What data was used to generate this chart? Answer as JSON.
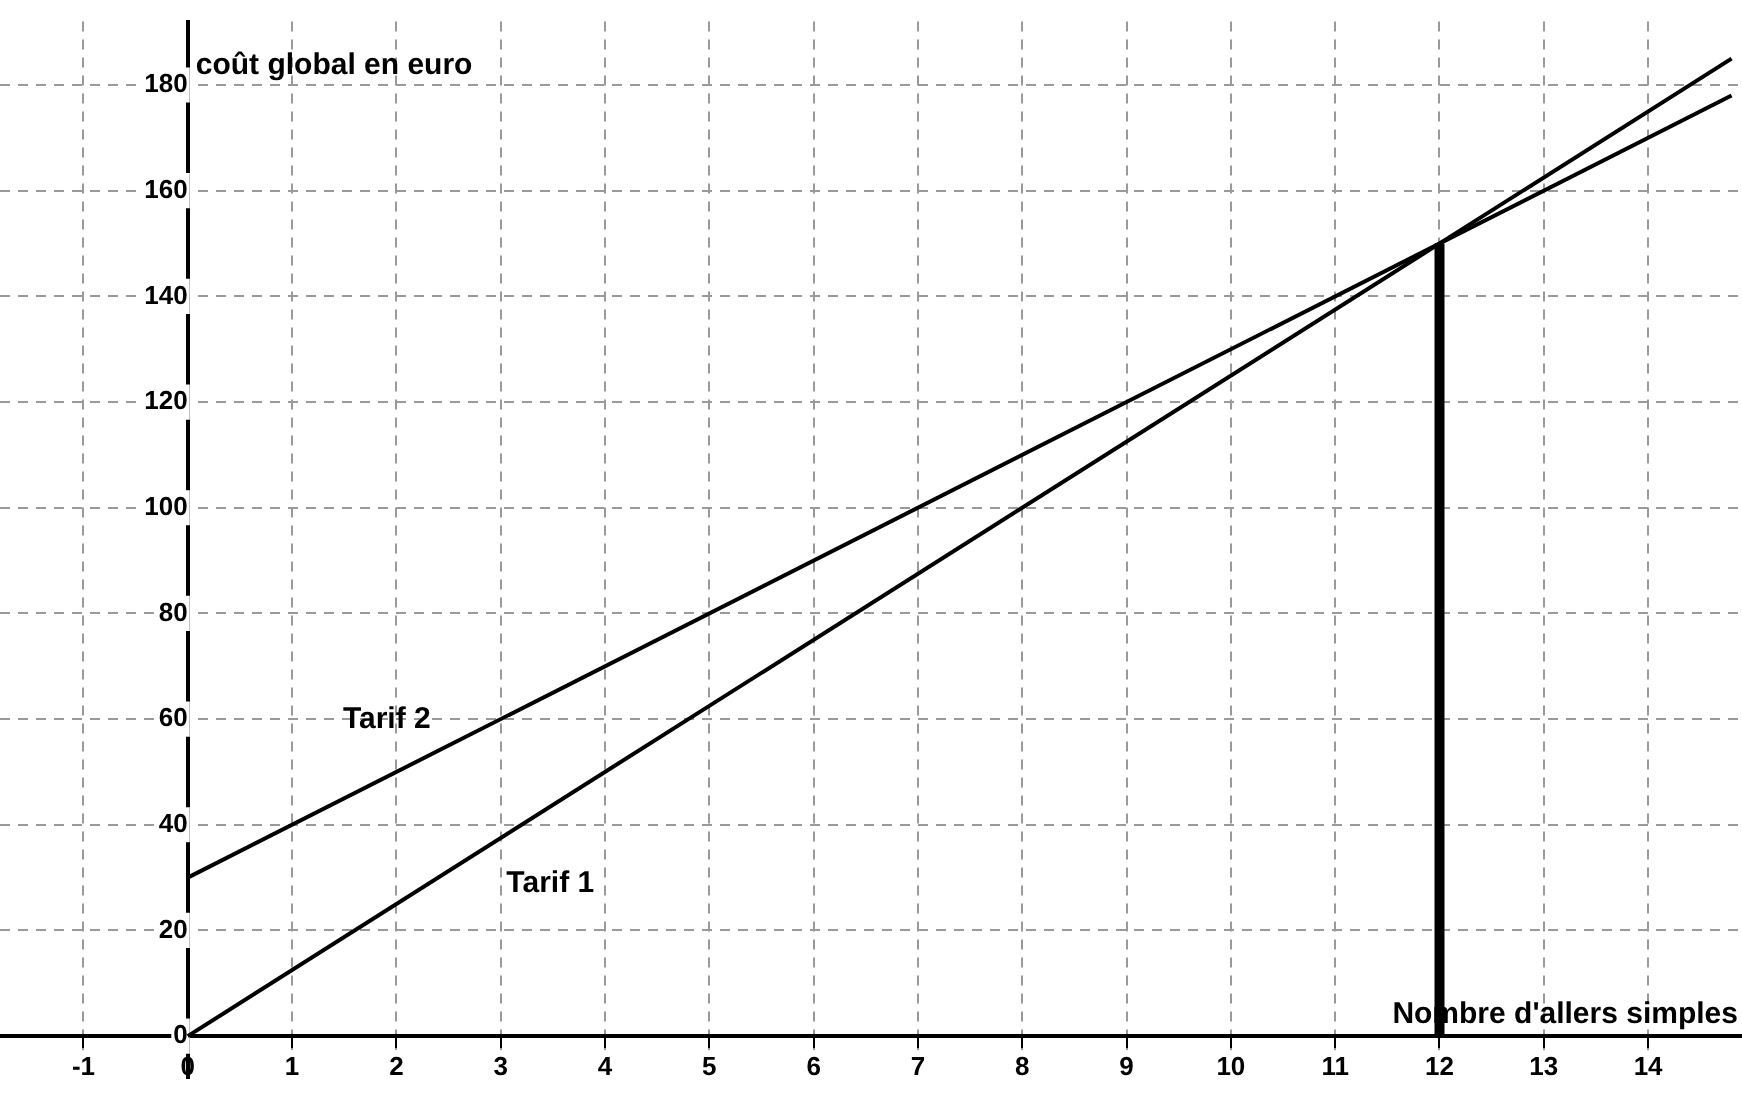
{
  "chart_data": {
    "type": "line",
    "xlabel": "Nombre d'allers simples",
    "ylabel": "coût global en euro",
    "xlim": [
      -1.8,
      14.9
    ],
    "ylim": [
      -8,
      192
    ],
    "xticks": [
      -1,
      0,
      1,
      2,
      3,
      4,
      5,
      6,
      7,
      8,
      9,
      10,
      11,
      12,
      13,
      14
    ],
    "yticks": [
      0,
      20,
      40,
      60,
      80,
      100,
      120,
      140,
      160,
      180
    ],
    "grid": true,
    "legend": false,
    "marker": "none",
    "line_style": "solid",
    "series": [
      {
        "name": "Tarif 1",
        "color": "#000000",
        "x": [
          0,
          14.8
        ],
        "values": [
          0,
          185
        ]
      },
      {
        "name": "Tarif 2",
        "color": "#000000",
        "x": [
          0,
          14.8
        ],
        "values": [
          30,
          178
        ]
      },
      {
        "color": "#000000",
        "x": [
          12,
          12
        ],
        "values": [
          0,
          150
        ]
      }
    ]
  }
}
